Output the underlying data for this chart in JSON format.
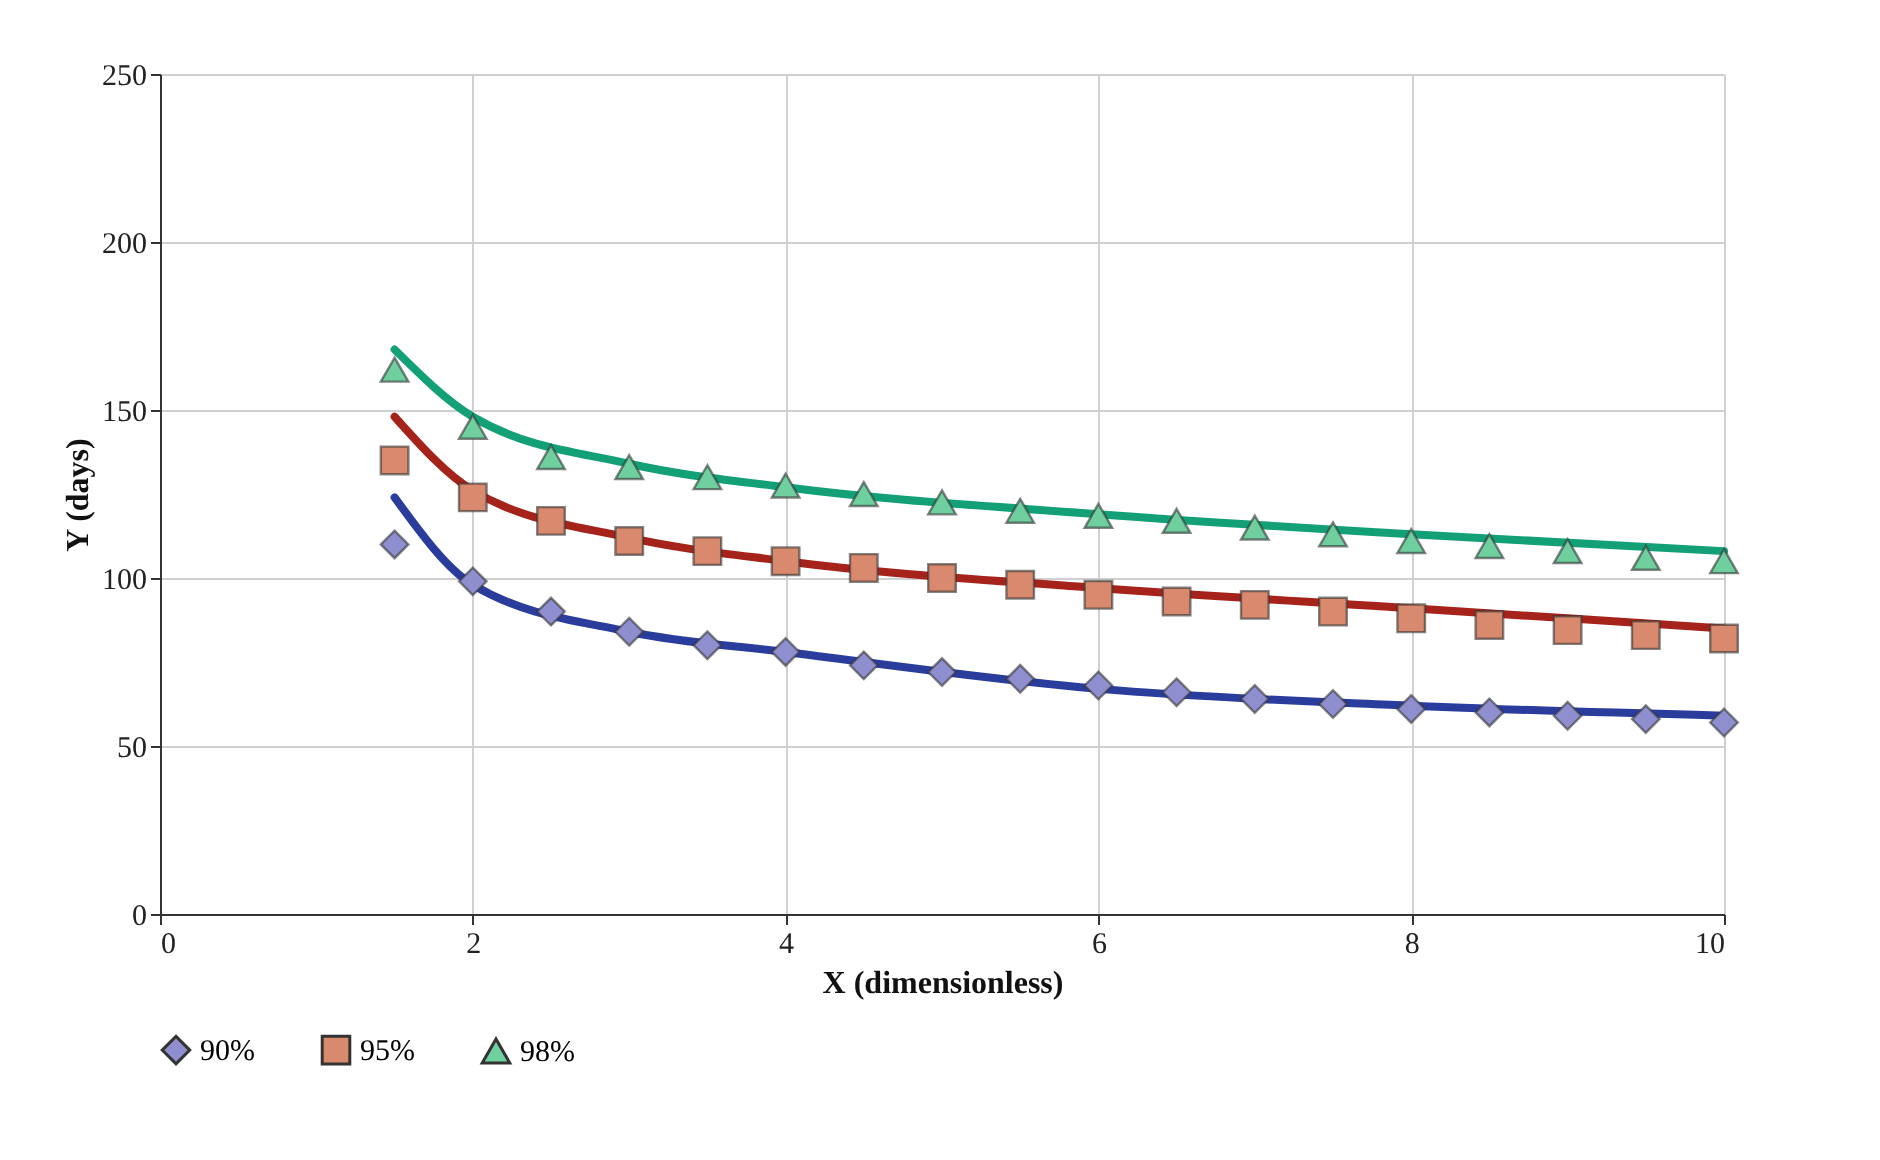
{
  "chart_data": {
    "type": "scatter",
    "xlabel": "X (dimensionless)",
    "ylabel": "Y (days)",
    "xlim": [
      0,
      10
    ],
    "xticks": [
      0,
      2,
      4,
      6,
      8,
      10
    ],
    "ylim": [
      0,
      250
    ],
    "yticks": [
      0,
      50,
      100,
      150,
      200,
      250
    ],
    "grid": true,
    "legend": "bottom",
    "x": [
      1.5,
      2,
      2.5,
      3,
      3.5,
      4,
      4.5,
      5,
      5.5,
      6,
      6.5,
      7,
      7.5,
      8,
      8.5,
      9,
      9.5,
      10
    ],
    "series": [
      {
        "name": "90%",
        "color": "#8f8fd0",
        "marker": "diamond",
        "values": [
          110,
          99,
          90,
          84,
          80,
          78,
          74,
          72,
          70,
          68,
          66,
          64,
          62.5,
          61,
          60,
          59,
          58,
          57
        ]
      },
      {
        "name": "95%",
        "color": "#d98a6e",
        "marker": "square",
        "values": [
          135,
          124,
          117,
          111,
          108,
          105,
          103,
          100,
          98,
          95,
          93,
          92,
          90,
          88,
          86,
          84.5,
          83,
          82
        ]
      },
      {
        "name": "98%",
        "color": "#6fcf9f",
        "marker": "triangle",
        "values": [
          162,
          145,
          136,
          133,
          130,
          127.5,
          125,
          122.5,
          120,
          118.5,
          117,
          115,
          113,
          111,
          109.5,
          108,
          106,
          105
        ]
      },
      {
        "type": "line",
        "color": "#2a3c9c",
        "x": [
          1.5,
          2,
          3,
          4,
          6,
          8,
          10
        ],
        "values": [
          124,
          98,
          84,
          78,
          67,
          62,
          59
        ]
      },
      {
        "type": "line",
        "color": "#a5231a",
        "x": [
          1.5,
          2,
          3,
          4,
          6,
          8,
          10
        ],
        "values": [
          148,
          126,
          112,
          105,
          97,
          91,
          85
        ]
      },
      {
        "type": "line",
        "color": "#13a077",
        "x": [
          1.5,
          2,
          3,
          4,
          6,
          8,
          10
        ],
        "values": [
          168,
          148,
          134,
          127,
          119,
          113,
          108
        ]
      }
    ]
  }
}
